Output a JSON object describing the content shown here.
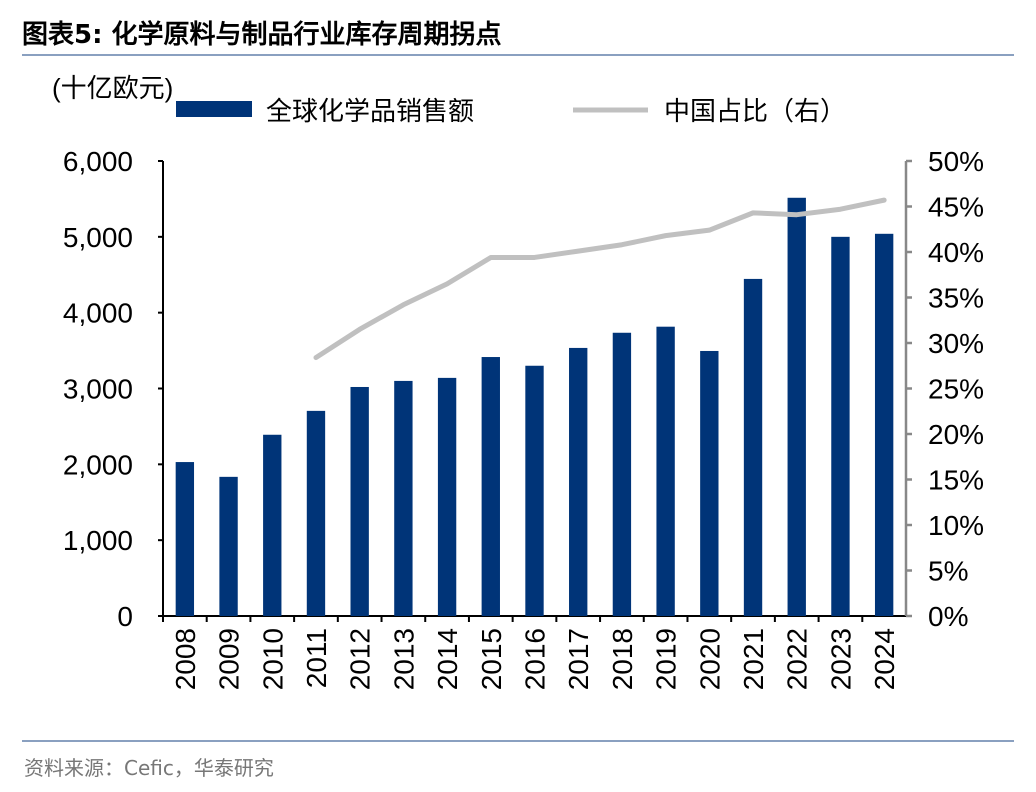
{
  "title": "图表5:  化学原料与制品行业库存周期拐点",
  "source": "资料来源：Cefic，华泰研究",
  "chart_data": {
    "type": "bar+line",
    "unit_label": "(十亿欧元)",
    "categories": [
      "2008",
      "2009",
      "2010",
      "2011",
      "2012",
      "2013",
      "2014",
      "2015",
      "2016",
      "2017",
      "2018",
      "2019",
      "2020",
      "2021",
      "2022",
      "2023",
      "2024"
    ],
    "series": [
      {
        "name": "全球化学品销售额",
        "type": "bar",
        "axis": "left",
        "color": "#003478",
        "values": [
          2030,
          1835,
          2390,
          2705,
          3020,
          3100,
          3140,
          3415,
          3300,
          3535,
          3735,
          3815,
          3495,
          4445,
          5515,
          5000,
          5040
        ]
      },
      {
        "name": "中国占比（右）",
        "type": "line",
        "axis": "right",
        "color": "#c0c0c0",
        "values": [
          null,
          null,
          null,
          28.4,
          31.5,
          34.2,
          36.5,
          39.4,
          39.4,
          40.1,
          40.8,
          41.8,
          42.4,
          44.3,
          44.1,
          44.7,
          45.7
        ]
      }
    ],
    "left_axis": {
      "ylim": [
        0,
        6000
      ],
      "ticks": [
        "0",
        "1,000",
        "2,000",
        "3,000",
        "4,000",
        "5,000",
        "6,000"
      ]
    },
    "right_axis": {
      "ylim": [
        0,
        50
      ],
      "ticks": [
        "0%",
        "5%",
        "10%",
        "15%",
        "20%",
        "25%",
        "30%",
        "35%",
        "40%",
        "45%",
        "50%"
      ]
    },
    "legend": "top"
  }
}
